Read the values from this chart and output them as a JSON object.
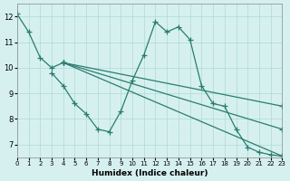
{
  "xlabel": "Humidex (Indice chaleur)",
  "ylabel": "",
  "background_color": "#d6f0f0",
  "line_color": "#2a7d6e",
  "xlim": [
    0,
    23
  ],
  "ylim": [
    6.5,
    12.5
  ],
  "xticks": [
    0,
    1,
    2,
    3,
    4,
    5,
    6,
    7,
    8,
    9,
    10,
    11,
    12,
    13,
    14,
    15,
    16,
    17,
    18,
    19,
    20,
    21,
    22,
    23
  ],
  "yticks": [
    7,
    8,
    9,
    10,
    11,
    12
  ],
  "series": [
    {
      "x": [
        0,
        1,
        2,
        3,
        4
      ],
      "y": [
        12.1,
        11.4,
        10.4,
        10.0,
        10.2
      ]
    },
    {
      "x": [
        3,
        4,
        5,
        6,
        7,
        8,
        9,
        10,
        11,
        12,
        13,
        14,
        15,
        16,
        17,
        18,
        19,
        20,
        21,
        22,
        23
      ],
      "y": [
        9.8,
        9.3,
        8.6,
        8.2,
        7.6,
        7.5,
        8.3,
        9.5,
        10.5,
        11.8,
        11.4,
        11.6,
        11.1,
        9.3,
        8.6,
        8.5,
        7.6,
        6.9,
        6.7,
        6.6,
        6.55
      ]
    },
    {
      "x": [
        4,
        23
      ],
      "y": [
        10.2,
        6.55
      ]
    },
    {
      "x": [
        4,
        23
      ],
      "y": [
        10.2,
        7.6
      ]
    },
    {
      "x": [
        4,
        23
      ],
      "y": [
        10.2,
        8.5
      ]
    }
  ]
}
